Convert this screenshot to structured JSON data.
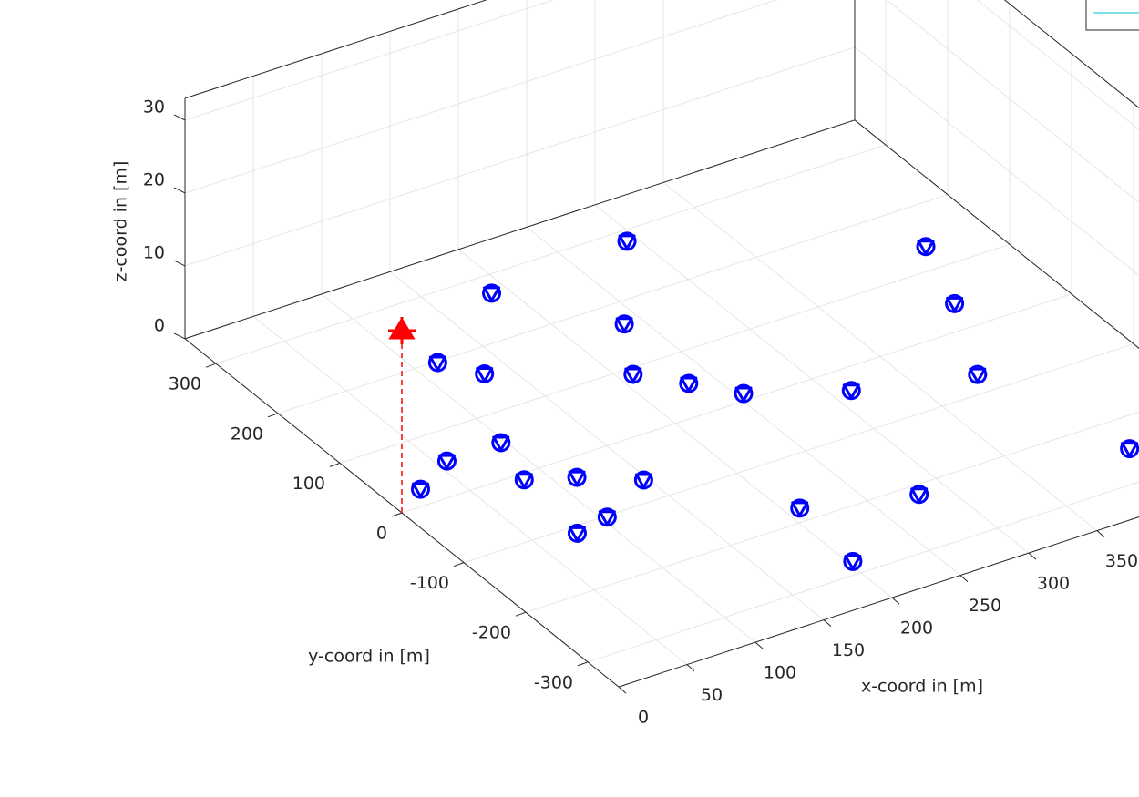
{
  "chart_data": {
    "type": "scatter3",
    "xlabel": "x-coord in [m]",
    "ylabel": "y-coord in [m]",
    "zlabel": "z-coord in [m]",
    "xlim": [
      0,
      490
    ],
    "ylim": [
      -350,
      350
    ],
    "zlim": [
      0,
      33
    ],
    "xticks": [
      0,
      50,
      100,
      150,
      200,
      250,
      300,
      350
    ],
    "yticks": [
      -300,
      -200,
      -100,
      0,
      100,
      200,
      300
    ],
    "zticks": [
      0,
      10,
      20,
      30
    ],
    "grid": true,
    "series": [
      {
        "color": "#0000ff",
        "marker": "v",
        "x": [
          293,
          445,
          189,
          423,
          238,
          116,
          133,
          210,
          233,
          255,
          313,
          389,
          420,
          97,
          57,
          25,
          85,
          114,
          147,
          104,
          78,
          210,
          281,
          203
        ],
        "y": [
          283,
          136,
          272,
          41,
          166,
          198,
          160,
          90,
          51,
          11,
          -35,
          -71,
          -248,
          54,
          53,
          25,
          -10,
          -31,
          -66,
          -102,
          -111,
          -179,
          -215,
          -280
        ],
        "z": [
          0,
          0,
          0,
          0,
          0,
          0,
          0,
          0,
          0,
          0,
          0,
          0,
          0,
          0,
          0,
          0,
          0,
          0,
          0,
          0,
          0,
          0,
          0,
          0
        ]
      },
      {
        "color": "#ff0000",
        "marker": "^",
        "stem": true,
        "x": [
          0
        ],
        "y": [
          0
        ],
        "z": [
          25
        ]
      }
    ]
  }
}
